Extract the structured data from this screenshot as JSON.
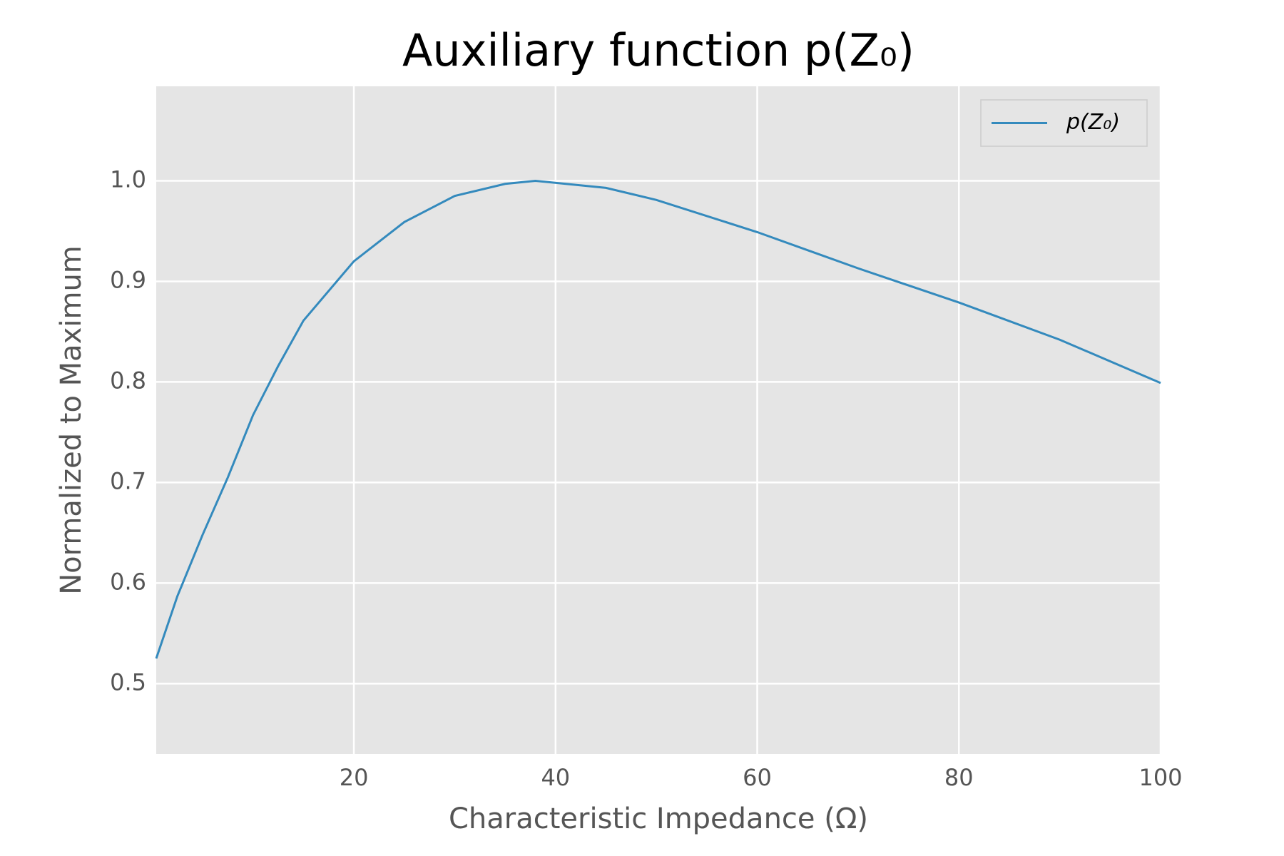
{
  "chart_data": {
    "type": "line",
    "title": "Auxiliary function p(Z₀)",
    "xlabel": "Characteristic Impedance (Ω)",
    "ylabel": "Normalized to Maximum",
    "x": [
      0.4,
      2.5,
      5,
      7.5,
      10,
      12.5,
      15,
      20,
      25,
      30,
      35,
      38,
      45,
      50,
      60,
      70,
      80,
      90,
      100
    ],
    "series": [
      {
        "name": "p(Z₀)",
        "color": "#348abd",
        "values": [
          0.525,
          0.587,
          0.648,
          0.705,
          0.767,
          0.816,
          0.861,
          0.92,
          0.959,
          0.985,
          0.997,
          1.0,
          0.993,
          0.981,
          0.949,
          0.913,
          0.879,
          0.842,
          0.799
        ]
      }
    ],
    "xlim": [
      0.4,
      100
    ],
    "ylim": [
      0.43,
      1.094
    ],
    "xticks": [
      20,
      40,
      60,
      80,
      100
    ],
    "yticks": [
      0.5,
      0.6,
      0.7,
      0.8,
      0.9,
      {
        "value": 1,
        "label": "1.0"
      }
    ],
    "grid": true,
    "legend": "upper right"
  }
}
